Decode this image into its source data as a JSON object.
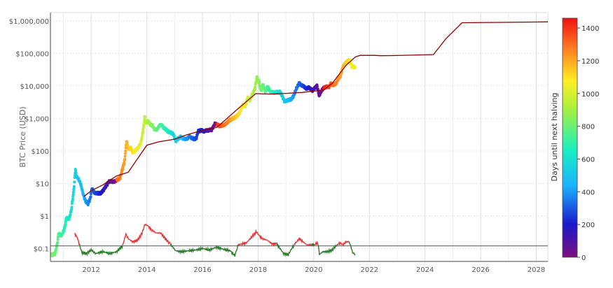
{
  "chart_data": {
    "type": "scatter",
    "title": "",
    "xlabel": "",
    "ylabel": "BTC Price (USD)",
    "y_scale": "log",
    "ylim": [
      0.04,
      1800000
    ],
    "xlim": [
      "2010-07-15",
      "2028-06-01"
    ],
    "grid": true,
    "x_ticks": [
      {
        "date": "2012-01-01",
        "label": "2012"
      },
      {
        "date": "2014-01-01",
        "label": "2014"
      },
      {
        "date": "2016-01-01",
        "label": "2016"
      },
      {
        "date": "2018-01-01",
        "label": "2018"
      },
      {
        "date": "2020-01-01",
        "label": "2020"
      },
      {
        "date": "2022-01-01",
        "label": "2022"
      },
      {
        "date": "2024-01-01",
        "label": "2024"
      },
      {
        "date": "2026-01-01",
        "label": "2026"
      },
      {
        "date": "2028-01-01",
        "label": "2028"
      }
    ],
    "y_ticks": [
      {
        "value": 0.1,
        "label": "$0.1"
      },
      {
        "value": 1,
        "label": "$1"
      },
      {
        "value": 10,
        "label": "$10"
      },
      {
        "value": 100,
        "label": "$100"
      },
      {
        "value": 1000,
        "label": "$1,000"
      },
      {
        "value": 10000,
        "label": "$10,000"
      },
      {
        "value": 100000,
        "label": "$100,000"
      },
      {
        "value": 1000000,
        "label": "$1,000,000"
      }
    ],
    "reference_line": {
      "value": 0.12,
      "color": "#555555"
    },
    "halvings": [
      "2012-11-28",
      "2016-07-09",
      "2020-05-11",
      "2024-04-20",
      "2028-03-15"
    ],
    "price_series": {
      "name": "BTC price",
      "color_by": "days_until_next_halving",
      "points": [
        [
          "2010-07-20",
          0.065
        ],
        [
          "2010-08-15",
          0.065
        ],
        [
          "2010-09-15",
          0.07
        ],
        [
          "2010-10-15",
          0.15
        ],
        [
          "2010-11-01",
          0.3
        ],
        [
          "2010-11-20",
          0.25
        ],
        [
          "2010-12-15",
          0.27
        ],
        [
          "2011-01-15",
          0.4
        ],
        [
          "2011-02-10",
          0.9
        ],
        [
          "2011-03-01",
          0.8
        ],
        [
          "2011-03-20",
          0.85
        ],
        [
          "2011-04-15",
          1.5
        ],
        [
          "2011-05-01",
          3
        ],
        [
          "2011-05-20",
          7
        ],
        [
          "2011-06-08",
          28
        ],
        [
          "2011-06-20",
          17
        ],
        [
          "2011-07-15",
          14
        ],
        [
          "2011-08-15",
          10
        ],
        [
          "2011-09-15",
          5
        ],
        [
          "2011-10-15",
          3
        ],
        [
          "2011-11-18",
          2.3
        ],
        [
          "2011-12-20",
          3.5
        ],
        [
          "2012-01-10",
          7
        ],
        [
          "2012-02-15",
          5
        ],
        [
          "2012-03-15",
          5
        ],
        [
          "2012-05-01",
          5
        ],
        [
          "2012-06-15",
          6.5
        ],
        [
          "2012-08-15",
          11
        ],
        [
          "2012-09-15",
          12
        ],
        [
          "2012-10-15",
          11
        ],
        [
          "2012-11-27",
          12.5
        ],
        [
          "2012-12-20",
          13.5
        ],
        [
          "2013-01-15",
          15
        ],
        [
          "2013-02-15",
          28
        ],
        [
          "2013-03-15",
          50
        ],
        [
          "2013-04-09",
          200
        ],
        [
          "2013-05-01",
          120
        ],
        [
          "2013-06-01",
          125
        ],
        [
          "2013-07-01",
          90
        ],
        [
          "2013-08-15",
          110
        ],
        [
          "2013-09-15",
          130
        ],
        [
          "2013-10-15",
          180
        ],
        [
          "2013-11-15",
          450
        ],
        [
          "2013-12-04",
          1100
        ],
        [
          "2013-12-20",
          700
        ],
        [
          "2014-01-15",
          850
        ],
        [
          "2014-02-15",
          650
        ],
        [
          "2014-03-15",
          600
        ],
        [
          "2014-04-15",
          450
        ],
        [
          "2014-05-15",
          450
        ],
        [
          "2014-06-15",
          620
        ],
        [
          "2014-07-15",
          620
        ],
        [
          "2014-08-15",
          500
        ],
        [
          "2014-09-15",
          450
        ],
        [
          "2014-10-15",
          380
        ],
        [
          "2014-11-15",
          370
        ],
        [
          "2014-12-15",
          330
        ],
        [
          "2015-01-14",
          200
        ],
        [
          "2015-02-15",
          240
        ],
        [
          "2015-03-15",
          270
        ],
        [
          "2015-05-01",
          230
        ],
        [
          "2015-06-15",
          240
        ],
        [
          "2015-07-15",
          280
        ],
        [
          "2015-08-15",
          250
        ],
        [
          "2015-09-15",
          230
        ],
        [
          "2015-10-15",
          260
        ],
        [
          "2015-11-05",
          400
        ],
        [
          "2015-12-15",
          440
        ],
        [
          "2016-01-15",
          400
        ],
        [
          "2016-03-01",
          430
        ],
        [
          "2016-05-01",
          450
        ],
        [
          "2016-06-15",
          700
        ],
        [
          "2016-07-08",
          650
        ],
        [
          "2016-08-15",
          580
        ],
        [
          "2016-10-01",
          610
        ],
        [
          "2016-11-15",
          720
        ],
        [
          "2016-12-20",
          900
        ],
        [
          "2017-01-10",
          900
        ],
        [
          "2017-02-15",
          1050
        ],
        [
          "2017-03-15",
          1100
        ],
        [
          "2017-05-01",
          1450
        ],
        [
          "2017-06-15",
          2600
        ],
        [
          "2017-07-15",
          2300
        ],
        [
          "2017-08-15",
          4300
        ],
        [
          "2017-09-15",
          3700
        ],
        [
          "2017-10-15",
          5600
        ],
        [
          "2017-11-15",
          7500
        ],
        [
          "2017-12-17",
          19000
        ],
        [
          "2018-01-15",
          13000
        ],
        [
          "2018-02-06",
          7000
        ],
        [
          "2018-03-05",
          11000
        ],
        [
          "2018-04-06",
          6800
        ],
        [
          "2018-05-05",
          9700
        ],
        [
          "2018-06-15",
          6400
        ],
        [
          "2018-08-15",
          6300
        ],
        [
          "2018-10-15",
          6500
        ],
        [
          "2018-11-20",
          4500
        ],
        [
          "2018-12-15",
          3300
        ],
        [
          "2019-01-15",
          3600
        ],
        [
          "2019-03-15",
          3900
        ],
        [
          "2019-04-15",
          5100
        ],
        [
          "2019-05-15",
          8000
        ],
        [
          "2019-06-26",
          12500
        ],
        [
          "2019-07-15",
          10500
        ],
        [
          "2019-08-15",
          10200
        ],
        [
          "2019-09-26",
          8000
        ],
        [
          "2019-10-26",
          9200
        ],
        [
          "2019-12-15",
          7200
        ],
        [
          "2020-01-15",
          8800
        ],
        [
          "2020-02-13",
          10300
        ],
        [
          "2020-03-12",
          5000
        ],
        [
          "2020-04-10",
          7000
        ],
        [
          "2020-05-10",
          8800
        ],
        [
          "2020-06-15",
          9400
        ],
        [
          "2020-07-15",
          9200
        ],
        [
          "2020-08-15",
          11800
        ],
        [
          "2020-09-15",
          10800
        ],
        [
          "2020-10-15",
          11500
        ],
        [
          "2020-11-15",
          16000
        ],
        [
          "2020-12-15",
          19500
        ],
        [
          "2021-01-15",
          37000
        ],
        [
          "2021-02-15",
          48000
        ],
        [
          "2021-03-15",
          56000
        ],
        [
          "2021-04-14",
          64000
        ],
        [
          "2021-05-19",
          38000
        ],
        [
          "2021-06-15",
          40000
        ],
        [
          "2021-07-01",
          33000
        ]
      ]
    },
    "trend_series": {
      "name": "halving step line",
      "color": "#8b0000",
      "points": [
        [
          "2011-10-01",
          4
        ],
        [
          "2012-01-01",
          6
        ],
        [
          "2012-06-01",
          9
        ],
        [
          "2012-11-28",
          17
        ],
        [
          "2013-05-01",
          22
        ],
        [
          "2014-01-01",
          150
        ],
        [
          "2014-06-01",
          190
        ],
        [
          "2015-01-01",
          230
        ],
        [
          "2015-06-01",
          310
        ],
        [
          "2016-01-01",
          430
        ],
        [
          "2016-07-09",
          530
        ],
        [
          "2017-04-01",
          1900
        ],
        [
          "2017-12-01",
          5800
        ],
        [
          "2018-06-01",
          5600
        ],
        [
          "2019-01-01",
          5900
        ],
        [
          "2019-08-01",
          6300
        ],
        [
          "2020-05-11",
          7500
        ],
        [
          "2020-09-01",
          12000
        ],
        [
          "2021-03-01",
          43000
        ],
        [
          "2021-07-01",
          78000
        ],
        [
          "2021-09-01",
          87000
        ],
        [
          "2022-03-01",
          87000
        ],
        [
          "2022-06-01",
          85000
        ],
        [
          "2023-01-01",
          86000
        ],
        [
          "2024-04-20",
          92000
        ],
        [
          "2024-10-01",
          280000
        ],
        [
          "2025-05-01",
          880000
        ],
        [
          "2026-06-01",
          895000
        ],
        [
          "2028-06-01",
          930000
        ]
      ]
    },
    "ratio_series": [
      {
        "name": "ratio",
        "color": "#e8333a",
        "segments": [
          [
            [
              "2011-06-01",
              0.28
            ],
            [
              "2011-07-01",
              0.22
            ],
            [
              "2011-08-01",
              0.13
            ]
          ],
          [
            [
              "2013-02-15",
              0.12
            ],
            [
              "2013-04-01",
              0.28
            ],
            [
              "2013-05-01",
              0.2
            ],
            [
              "2013-07-01",
              0.16
            ],
            [
              "2013-09-01",
              0.18
            ],
            [
              "2013-11-01",
              0.3
            ],
            [
              "2013-12-05",
              0.55
            ],
            [
              "2014-01-15",
              0.5
            ],
            [
              "2014-03-01",
              0.38
            ],
            [
              "2014-05-01",
              0.3
            ],
            [
              "2014-07-01",
              0.3
            ],
            [
              "2014-09-01",
              0.2
            ],
            [
              "2014-11-01",
              0.14
            ]
          ],
          [
            [
              "2017-04-15",
              0.13
            ],
            [
              "2017-08-01",
              0.15
            ],
            [
              "2017-12-10",
              0.33
            ],
            [
              "2018-01-15",
              0.25
            ],
            [
              "2018-03-01",
              0.2
            ],
            [
              "2018-05-01",
              0.18
            ],
            [
              "2018-07-01",
              0.14
            ],
            [
              "2018-09-01",
              0.14
            ]
          ],
          [
            [
              "2019-04-15",
              0.13
            ],
            [
              "2019-06-26",
              0.2
            ],
            [
              "2019-08-15",
              0.16
            ],
            [
              "2019-10-01",
              0.13
            ],
            [
              "2019-12-01",
              0.13
            ]
          ],
          [
            [
              "2020-01-15",
              0.13
            ],
            [
              "2020-02-15",
              0.15
            ],
            [
              "2020-03-01",
              0.13
            ]
          ],
          [
            [
              "2020-11-01",
              0.13
            ],
            [
              "2020-12-15",
              0.15
            ],
            [
              "2021-01-15",
              0.13
            ],
            [
              "2021-03-01",
              0.16
            ],
            [
              "2021-04-10",
              0.16
            ]
          ]
        ]
      },
      {
        "name": "ratio",
        "color": "#2a7a2a",
        "segments": [
          [
            [
              "2011-08-01",
              0.13
            ],
            [
              "2011-09-01",
              0.075
            ],
            [
              "2011-11-01",
              0.07
            ],
            [
              "2012-01-01",
              0.09
            ],
            [
              "2012-03-01",
              0.07
            ],
            [
              "2012-06-01",
              0.08
            ],
            [
              "2012-09-01",
              0.07
            ],
            [
              "2012-12-01",
              0.08
            ],
            [
              "2013-02-15",
              0.12
            ]
          ],
          [
            [
              "2014-11-01",
              0.14
            ],
            [
              "2015-01-15",
              0.085
            ],
            [
              "2015-04-01",
              0.08
            ],
            [
              "2015-07-01",
              0.085
            ],
            [
              "2015-10-01",
              0.09
            ],
            [
              "2016-01-01",
              0.1
            ],
            [
              "2016-04-01",
              0.09
            ],
            [
              "2016-07-01",
              0.11
            ],
            [
              "2016-10-01",
              0.095
            ],
            [
              "2017-01-01",
              0.085
            ],
            [
              "2017-03-01",
              0.06
            ],
            [
              "2017-04-15",
              0.13
            ]
          ],
          [
            [
              "2018-09-01",
              0.14
            ],
            [
              "2018-12-01",
              0.07
            ],
            [
              "2019-02-01",
              0.065
            ],
            [
              "2019-04-15",
              0.13
            ]
          ],
          [
            [
              "2019-12-01",
              0.13
            ],
            [
              "2020-01-15",
              0.13
            ]
          ],
          [
            [
              "2020-03-01",
              0.13
            ],
            [
              "2020-03-15",
              0.065
            ],
            [
              "2020-05-01",
              0.08
            ],
            [
              "2020-07-01",
              0.08
            ],
            [
              "2020-09-01",
              0.09
            ],
            [
              "2020-11-01",
              0.13
            ]
          ],
          [
            [
              "2021-04-10",
              0.16
            ],
            [
              "2021-05-01",
              0.12
            ],
            [
              "2021-05-25",
              0.075
            ],
            [
              "2021-07-01",
              0.065
            ]
          ]
        ]
      }
    ],
    "colorbar": {
      "label": "Days until next halving",
      "min": 0,
      "max": 1460,
      "ticks": [
        0,
        200,
        400,
        600,
        800,
        1000,
        1200,
        1400
      ],
      "colorscale": [
        "#7f0f7f",
        "#1a1acc",
        "#1ab4ff",
        "#18f0c0",
        "#a8f040",
        "#ffee22",
        "#ff8822",
        "#ee1111"
      ]
    }
  }
}
